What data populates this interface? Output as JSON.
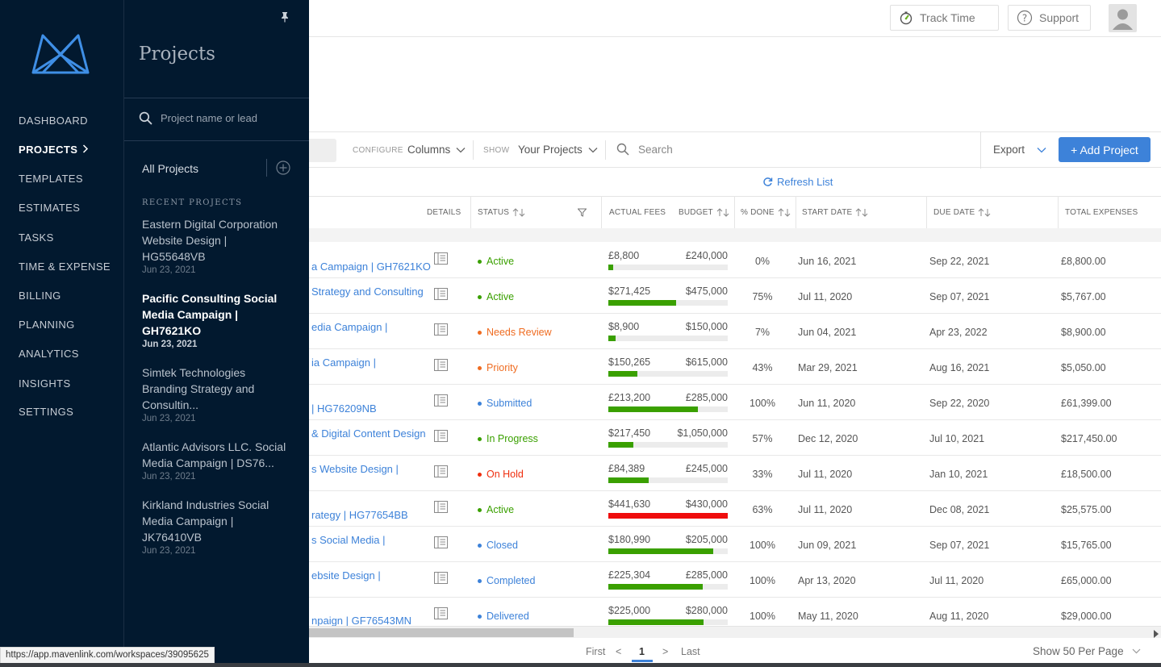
{
  "header": {
    "track_time": "Track Time",
    "support": "Support"
  },
  "nav": {
    "items": [
      {
        "label": "DASHBOARD"
      },
      {
        "label": "PROJECTS"
      },
      {
        "label": "TEMPLATES"
      },
      {
        "label": "ESTIMATES"
      },
      {
        "label": "TASKS"
      },
      {
        "label": "TIME & EXPENSE"
      },
      {
        "label": "BILLING"
      },
      {
        "label": "PLANNING"
      },
      {
        "label": "ANALYTICS"
      },
      {
        "label": "INSIGHTS"
      },
      {
        "label": "SETTINGS"
      }
    ],
    "active": "PROJECTS"
  },
  "panel": {
    "title": "Projects",
    "search_placeholder": "Project name or lead",
    "all_projects": "All Projects",
    "recent_label": "RECENT PROJECTS",
    "recent": [
      {
        "name": "Eastern Digital Corporation Website Design | HG55648VB",
        "date": "Jun 23, 2021"
      },
      {
        "name": "Pacific Consulting Social Media Campaign | GH7621KO",
        "date": "Jun 23, 2021"
      },
      {
        "name": "Simtek Technologies Branding Strategy and Consultin...",
        "date": "Jun 23, 2021"
      },
      {
        "name": "Atlantic Advisors LLC. Social Media Campaign | DS76...",
        "date": "Jun 23, 2021"
      },
      {
        "name": "Kirkland Industries Social Media Campaign | JK76410VB",
        "date": "Jun 23, 2021"
      }
    ]
  },
  "toolbar": {
    "configure_label": "CONFIGURE",
    "columns": "Columns",
    "show_label": "SHOW",
    "show_value": "Your Projects",
    "search_placeholder": "Search",
    "export": "Export",
    "add_project": "+ Add Project",
    "refresh": "Refresh List"
  },
  "table": {
    "headers": {
      "details": "DETAILS",
      "status": "STATUS",
      "actual_fees": "ACTUAL FEES",
      "budget": "BUDGET",
      "pct_done": "% DONE",
      "start_date": "START DATE",
      "due_date": "DUE DATE",
      "total_expenses": "TOTAL EXPENSES"
    },
    "rows": [
      {
        "name": "a Campaign | GH7621KO",
        "status": "Active",
        "status_color": "#3aa000",
        "fee": "£8,800",
        "budget": "£240,000",
        "progress": 0.04,
        "bar_color": "#3aa000",
        "pct": "0%",
        "start": "Jun 16, 2021",
        "due": "Sep 22, 2021",
        "expenses": "£8,800.00"
      },
      {
        "name": "Strategy and Consulting",
        "status": "Active",
        "status_color": "#3aa000",
        "fee": "$271,425",
        "budget": "$475,000",
        "progress": 0.57,
        "bar_color": "#3aa000",
        "pct": "75%",
        "start": "Jul 11, 2020",
        "due": "Sep 07, 2021",
        "expenses": "$5,767.00"
      },
      {
        "name": "edia Campaign |",
        "status": "Needs Review",
        "status_color": "#ef6c21",
        "fee": "$8,900",
        "budget": "$150,000",
        "progress": 0.06,
        "bar_color": "#3aa000",
        "pct": "7%",
        "start": "Jun 04, 2021",
        "due": "Apr 23, 2022",
        "expenses": "$8,900.00"
      },
      {
        "name": "ia Campaign |",
        "status": "Priority",
        "status_color": "#ef6c21",
        "fee": "$150,265",
        "budget": "$615,000",
        "progress": 0.24,
        "bar_color": "#3aa000",
        "pct": "43%",
        "start": "Mar 29, 2021",
        "due": "Aug 16, 2021",
        "expenses": "$5,050.00"
      },
      {
        "name": "| HG76209NB",
        "status": "Submitted",
        "status_color": "#3d82d9",
        "fee": "£213,200",
        "budget": "£285,000",
        "progress": 0.75,
        "bar_color": "#3aa000",
        "pct": "100%",
        "start": "Jun 11, 2020",
        "due": "Sep 22, 2020",
        "expenses": "£61,399.00"
      },
      {
        "name": "& Digital Content Design",
        "status": "In Progress",
        "status_color": "#3aa000",
        "fee": "$217,450",
        "budget": "$1,050,000",
        "progress": 0.21,
        "bar_color": "#3aa000",
        "pct": "57%",
        "start": "Dec 12, 2020",
        "due": "Jul 10, 2021",
        "expenses": "$217,450.00"
      },
      {
        "name": "s Website Design |",
        "status": "On Hold",
        "status_color": "#ef2e0e",
        "fee": "£84,389",
        "budget": "£245,000",
        "progress": 0.34,
        "bar_color": "#3aa000",
        "pct": "33%",
        "start": "Jul 11, 2020",
        "due": "Jan 10, 2021",
        "expenses": "£18,500.00"
      },
      {
        "name": "rategy | HG77654BB",
        "status": "Active",
        "status_color": "#3aa000",
        "fee": "$441,630",
        "budget": "$430,000",
        "progress": 1.0,
        "bar_color": "#ef0d0d",
        "pct": "63%",
        "start": "Jul 11, 2020",
        "due": "Dec 08, 2021",
        "expenses": "$25,575.00"
      },
      {
        "name": "s Social Media |",
        "status": "Closed",
        "status_color": "#3d82d9",
        "fee": "$180,990",
        "budget": "$205,000",
        "progress": 0.88,
        "bar_color": "#3aa000",
        "pct": "100%",
        "start": "Jun 09, 2021",
        "due": "Sep 07, 2021",
        "expenses": "$15,765.00"
      },
      {
        "name": "ebsite Design |",
        "status": "Completed",
        "status_color": "#3d82d9",
        "fee": "£225,304",
        "budget": "£285,000",
        "progress": 0.79,
        "bar_color": "#3aa000",
        "pct": "100%",
        "start": "Apr 13, 2020",
        "due": "Jul 11, 2020",
        "expenses": "£65,000.00"
      },
      {
        "name": "npaign | GF76543MN",
        "status": "Delivered",
        "status_color": "#3d82d9",
        "fee": "$225,000",
        "budget": "$280,000",
        "progress": 0.8,
        "bar_color": "#3aa000",
        "pct": "100%",
        "start": "May 11, 2020",
        "due": "Aug 11, 2020",
        "expenses": "$29,000.00"
      }
    ]
  },
  "pagination": {
    "first": "First",
    "prev": "<",
    "current": "1",
    "next": ">",
    "last": "Last",
    "per_page": "Show 50 Per Page"
  },
  "status_bar_url": "https://app.mavenlink.com/workspaces/39095625"
}
